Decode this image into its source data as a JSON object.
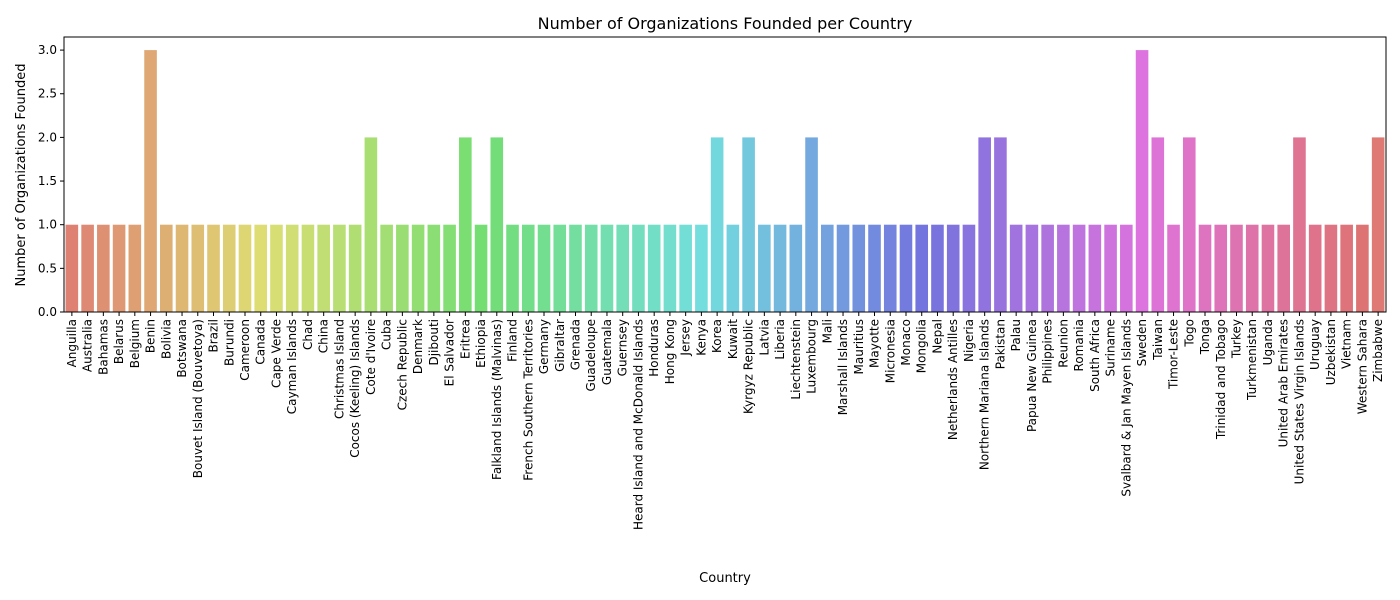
{
  "chart_data": {
    "type": "bar",
    "title": "Number of Organizations Founded per Country",
    "xlabel": "Country",
    "ylabel": "Number of Organizations Founded",
    "ylim": [
      0,
      3.15
    ],
    "yticks": [
      "0.0",
      "0.5",
      "1.0",
      "1.5",
      "2.0",
      "2.5",
      "3.0"
    ],
    "grid": false,
    "legend": "none",
    "categories": [
      "Anguilla",
      "Australia",
      "Bahamas",
      "Belarus",
      "Belgium",
      "Benin",
      "Bolivia",
      "Botswana",
      "Bouvet Island (Bouvetoya)",
      "Brazil",
      "Burundi",
      "Cameroon",
      "Canada",
      "Cape Verde",
      "Cayman Islands",
      "Chad",
      "China",
      "Christmas Island",
      "Cocos (Keeling) Islands",
      "Cote d'Ivoire",
      "Cuba",
      "Czech Republic",
      "Denmark",
      "Djibouti",
      "El Salvador",
      "Eritrea",
      "Ethiopia",
      "Falkland Islands (Malvinas)",
      "Finland",
      "French Southern Territories",
      "Germany",
      "Gibraltar",
      "Grenada",
      "Guadeloupe",
      "Guatemala",
      "Guernsey",
      "Heard Island and McDonald Islands",
      "Honduras",
      "Hong Kong",
      "Jersey",
      "Kenya",
      "Korea",
      "Kuwait",
      "Kyrgyz Republic",
      "Latvia",
      "Liberia",
      "Liechtenstein",
      "Luxembourg",
      "Mali",
      "Marshall Islands",
      "Mauritius",
      "Mayotte",
      "Micronesia",
      "Monaco",
      "Mongolia",
      "Nepal",
      "Netherlands Antilles",
      "Nigeria",
      "Northern Mariana Islands",
      "Pakistan",
      "Palau",
      "Papua New Guinea",
      "Philippines",
      "Reunion",
      "Romania",
      "South Africa",
      "Suriname",
      "Svalbard & Jan Mayen Islands",
      "Sweden",
      "Taiwan",
      "Timor-Leste",
      "Togo",
      "Tonga",
      "Trinidad and Tobago",
      "Turkey",
      "Turkmenistan",
      "Uganda",
      "United Arab Emirates",
      "United States Virgin Islands",
      "Uruguay",
      "Uzbekistan",
      "Vietnam",
      "Western Sahara",
      "Zimbabwe"
    ],
    "values": [
      1,
      1,
      1,
      1,
      1,
      3,
      1,
      1,
      1,
      1,
      1,
      1,
      1,
      1,
      1,
      1,
      1,
      1,
      1,
      2,
      1,
      1,
      1,
      1,
      1,
      2,
      1,
      2,
      1,
      1,
      1,
      1,
      1,
      1,
      1,
      1,
      1,
      1,
      1,
      1,
      1,
      2,
      1,
      2,
      1,
      1,
      1,
      2,
      1,
      1,
      1,
      1,
      1,
      1,
      1,
      1,
      1,
      1,
      2,
      2,
      1,
      1,
      1,
      1,
      1,
      1,
      1,
      1,
      3,
      2,
      1,
      2,
      1,
      1,
      1,
      1,
      1,
      1,
      2,
      1,
      1,
      1,
      1,
      2
    ]
  }
}
